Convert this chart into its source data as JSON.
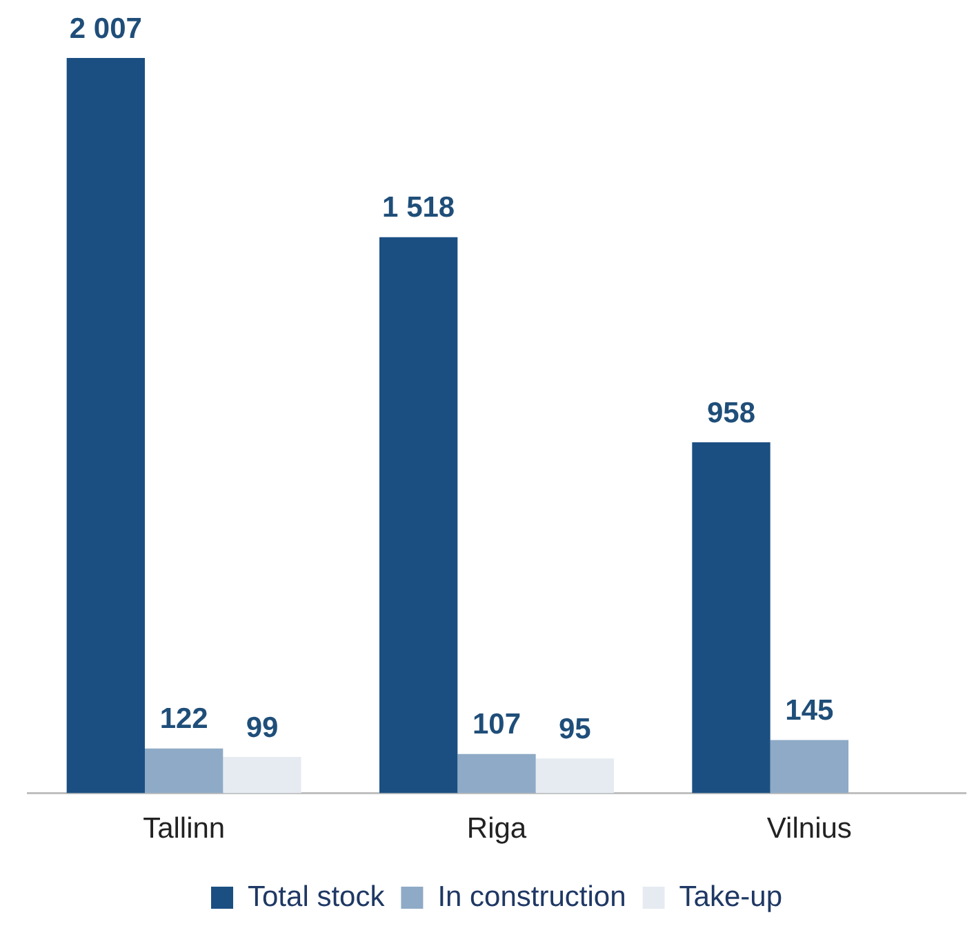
{
  "chart_data": {
    "type": "bar",
    "categories": [
      "Tallinn",
      "Riga",
      "Vilnius"
    ],
    "series": [
      {
        "name": "Total stock",
        "color": "#1b4f82",
        "values": [
          2007,
          1518,
          958
        ],
        "value_labels": [
          "2 007",
          "1 518",
          "958"
        ]
      },
      {
        "name": "In construction",
        "color": "#8eaac6",
        "values": [
          122,
          107,
          145
        ],
        "value_labels": [
          "122",
          "107",
          "145"
        ]
      },
      {
        "name": "Take-up",
        "color": "#e6ebf2",
        "values": [
          99,
          95,
          null
        ],
        "value_labels": [
          "99",
          "95",
          null
        ]
      }
    ],
    "legend": "bottom",
    "grid": false
  }
}
